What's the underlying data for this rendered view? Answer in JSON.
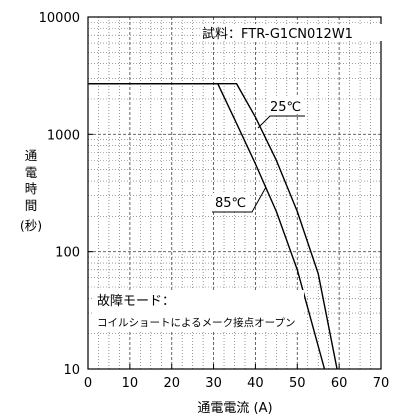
{
  "chart_data": {
    "type": "line",
    "title": "",
    "sample_label": "試料：FTR-G1CN012W1",
    "xlabel": "通電電流 (A)",
    "ylabel_chars": [
      "通",
      "電",
      "時",
      "間"
    ],
    "ylabel_unit": "(秒)",
    "xlim": [
      0,
      70
    ],
    "ylim": [
      10,
      10000
    ],
    "yscale": "log",
    "grid": true,
    "x_ticks": [
      "0",
      "10",
      "20",
      "30",
      "40",
      "50",
      "60",
      "70"
    ],
    "y_ticks": [
      "10",
      "100",
      "1000",
      "10000"
    ],
    "series": [
      {
        "name": "25℃",
        "points": [
          [
            0,
            2700
          ],
          [
            35.5,
            2700
          ],
          [
            40,
            1400
          ],
          [
            45,
            600
          ],
          [
            50,
            220
          ],
          [
            55,
            65
          ],
          [
            59.5,
            10
          ]
        ]
      },
      {
        "name": "85℃",
        "points": [
          [
            0,
            2700
          ],
          [
            31,
            2700
          ],
          [
            35,
            1350
          ],
          [
            40,
            560
          ],
          [
            45,
            220
          ],
          [
            50,
            70
          ],
          [
            56.5,
            10
          ]
        ]
      }
    ],
    "annotations": {
      "failure_mode_title": "故障モード：",
      "failure_mode_desc": "コイルショートによるメーク接点オープン"
    }
  }
}
